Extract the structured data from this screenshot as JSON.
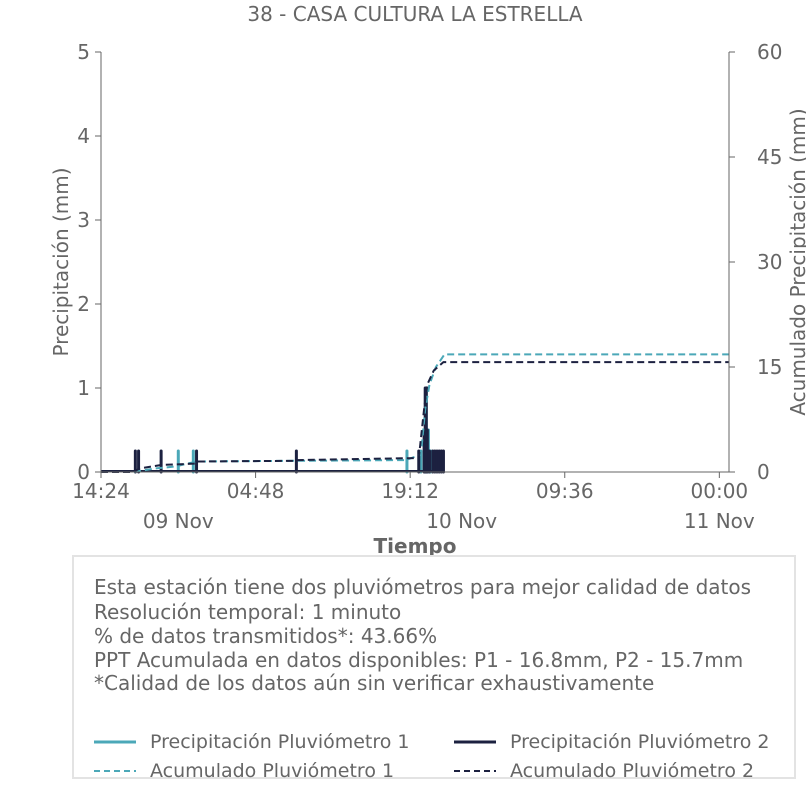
{
  "chart_data": {
    "type": "line",
    "title": "38 - CASA CULTURA LA ESTRELLA",
    "xlabel": "Tiempo",
    "ylabel": "Precipitación (mm)",
    "ylabel_right": "Acumulado Precipitación (mm)",
    "ylim": [
      0,
      5
    ],
    "ylim_right": [
      0,
      60
    ],
    "yticks": [
      "0",
      "1",
      "2",
      "3",
      "4",
      "5"
    ],
    "yticks_right": [
      "0",
      "15",
      "30",
      "45",
      "60"
    ],
    "xlim_hours": [
      0,
      58.5
    ],
    "xticks": [
      {
        "x": 0,
        "label": "14:24"
      },
      {
        "x": 14.4,
        "label": "04:48"
      },
      {
        "x": 28.8,
        "label": "19:12"
      },
      {
        "x": 43.2,
        "label": "09:36"
      },
      {
        "x": 57.6,
        "label": "00:00"
      }
    ],
    "date_labels": [
      {
        "x": 7.2,
        "label": "09 Nov"
      },
      {
        "x": 33.6,
        "label": "10 Nov"
      },
      {
        "x": 57.6,
        "label": "11 Nov"
      }
    ],
    "grid": false,
    "colors": {
      "p1": "#4ba8b8",
      "p2": "#1c2140",
      "axis": "#666666"
    },
    "series": [
      {
        "name": "Precipitación Pluviómetro 1",
        "style": "bar",
        "axis": "left",
        "color": "#4ba8b8",
        "x": [
          7.2,
          8.6,
          28.5,
          29.8,
          30.2,
          30.3,
          30.5,
          30.7
        ],
        "values": [
          0.25,
          0.25,
          0.25,
          0.25,
          0.5,
          1.0,
          0.5,
          0.25
        ]
      },
      {
        "name": "Precipitación Pluviómetro 2",
        "style": "bar",
        "axis": "left",
        "color": "#1c2140",
        "x": [
          3.2,
          3.5,
          5.6,
          8.9,
          18.2,
          29.6,
          30.1,
          30.2,
          30.3,
          30.4,
          30.6,
          30.9,
          31.1,
          31.3,
          31.5,
          31.7,
          31.9
        ],
        "values": [
          0.25,
          0.25,
          0.25,
          0.25,
          0.25,
          0.25,
          0.5,
          1.0,
          1.0,
          0.5,
          0.25,
          0.25,
          0.25,
          0.25,
          0.25,
          0.25,
          0.25
        ]
      },
      {
        "name": "Acumulado Pluviómetro 1",
        "style": "dashed",
        "axis": "right",
        "color": "#4ba8b8",
        "x": [
          0,
          3.0,
          5.0,
          7.0,
          8.0,
          9.0,
          18.0,
          28.4,
          29.8,
          30.2,
          30.6,
          31.2,
          32.0,
          58.5
        ],
        "values": [
          0,
          0,
          0.5,
          0.8,
          1.2,
          1.5,
          1.6,
          1.7,
          2.5,
          9.0,
          12.5,
          15.0,
          16.8,
          16.8
        ]
      },
      {
        "name": "Acumulado Pluviómetro 2",
        "style": "dashed",
        "axis": "right",
        "color": "#1c2140",
        "x": [
          0,
          3.0,
          3.6,
          5.6,
          8.8,
          9.0,
          18.1,
          18.3,
          29.6,
          30.1,
          30.4,
          31.0,
          31.9,
          58.5
        ],
        "values": [
          0,
          0,
          0.5,
          1.0,
          1.2,
          1.5,
          1.6,
          1.7,
          2.0,
          9.0,
          12.5,
          14.5,
          15.7,
          15.7
        ]
      }
    ]
  },
  "info": {
    "line1": "Esta estación tiene dos pluviómetros para mejor calidad de datos",
    "line2": "Resolución temporal: 1 minuto",
    "line3": "% de datos transmitidos*: 43.66%",
    "line4": "PPT Acumulada en datos disponibles: P1 - 16.8mm, P2 - 15.7mm",
    "line5": "*Calidad de los datos aún sin verificar exhaustivamente"
  },
  "legend": {
    "p1_precip": "Precipitación Pluviómetro 1",
    "p2_precip": "Precipitación Pluviómetro 2",
    "p1_acum": "Acumulado Pluviómetro 1",
    "p2_acum": "Acumulado Pluviómetro 2"
  }
}
